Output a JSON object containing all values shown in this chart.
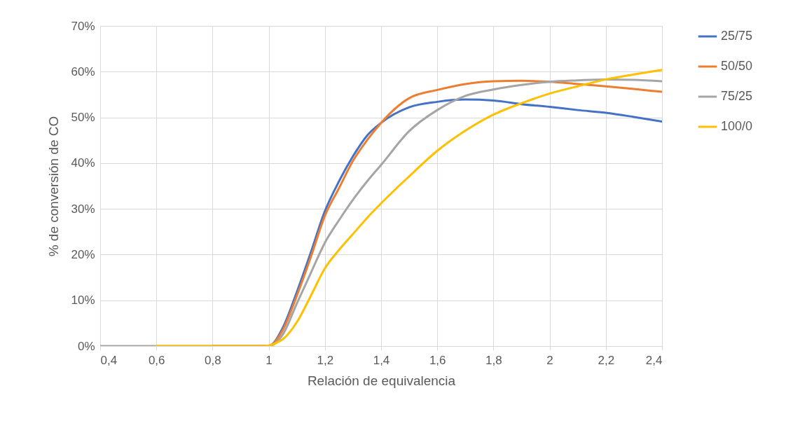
{
  "chart_data": {
    "type": "line",
    "xlabel": "Relación de equivalencia",
    "ylabel": "% de conversión de CO",
    "xlim": [
      0.4,
      2.4
    ],
    "ylim": [
      0,
      70
    ],
    "xticks": [
      {
        "value": 0.4,
        "label": "0,4"
      },
      {
        "value": 0.6,
        "label": "0,6"
      },
      {
        "value": 0.8,
        "label": "0,8"
      },
      {
        "value": 1,
        "label": "1"
      },
      {
        "value": 1.2,
        "label": "1,2"
      },
      {
        "value": 1.4,
        "label": "1,4"
      },
      {
        "value": 1.6,
        "label": "1,6"
      },
      {
        "value": 1.8,
        "label": "1,8"
      },
      {
        "value": 2,
        "label": "2"
      },
      {
        "value": 2.2,
        "label": "2,2"
      },
      {
        "value": 2.4,
        "label": "2,4"
      }
    ],
    "yticks": [
      {
        "value": 0,
        "label": "0%"
      },
      {
        "value": 10,
        "label": "10%"
      },
      {
        "value": 20,
        "label": "20%"
      },
      {
        "value": 30,
        "label": "30%"
      },
      {
        "value": 40,
        "label": "40%"
      },
      {
        "value": 50,
        "label": "50%"
      },
      {
        "value": 60,
        "label": "60%"
      },
      {
        "value": 70,
        "label": "70%"
      }
    ],
    "x": [
      0.4,
      0.6,
      0.8,
      1.0,
      1.05,
      1.1,
      1.15,
      1.2,
      1.25,
      1.3,
      1.35,
      1.4,
      1.5,
      1.6,
      1.7,
      1.8,
      1.9,
      2.0,
      2.1,
      2.2,
      2.3,
      2.4
    ],
    "series": [
      {
        "name": "25/75",
        "color": "#4472c4",
        "values": [
          null,
          null,
          0,
          0,
          4,
          11.8,
          20.5,
          29.5,
          36,
          41.5,
          46,
          48.8,
          52.2,
          53.4,
          53.9,
          53.7,
          52.9,
          52.3,
          51.6,
          51.0,
          50.1,
          49.1
        ]
      },
      {
        "name": "50/50",
        "color": "#ed7d31",
        "values": [
          null,
          null,
          0,
          0,
          3.5,
          11,
          19.5,
          28.5,
          34.5,
          40.5,
          45,
          48.8,
          54.2,
          56.0,
          57.3,
          57.9,
          58.0,
          57.8,
          57.3,
          56.8,
          56.2,
          55.6
        ]
      },
      {
        "name": "75/25",
        "color": "#a5a5a5",
        "values": [
          0,
          0,
          0,
          0,
          2.5,
          9.3,
          16,
          22.6,
          27.5,
          32,
          36,
          39.6,
          47.0,
          51.6,
          54.7,
          56.1,
          57.1,
          57.8,
          58.1,
          58.3,
          58.2,
          57.9
        ]
      },
      {
        "name": "100/0",
        "color": "#ffc000",
        "x": [
          0.6,
          0.8,
          0.9,
          0.98,
          1.05,
          1.1,
          1.15,
          1.2,
          1.25,
          1.3,
          1.35,
          1.4,
          1.5,
          1.6,
          1.7,
          1.8,
          1.9,
          2.0,
          2.1,
          2.2,
          2.3,
          2.4
        ],
        "values": [
          0,
          0,
          0,
          0,
          1.5,
          5.2,
          11,
          17,
          21,
          24.5,
          28,
          31.2,
          37.1,
          42.7,
          47.1,
          50.6,
          53.1,
          55.2,
          56.8,
          58.3,
          59.4,
          60.4
        ]
      }
    ],
    "grid": true,
    "legend": "right",
    "line_style": "solid",
    "marker": "none"
  }
}
